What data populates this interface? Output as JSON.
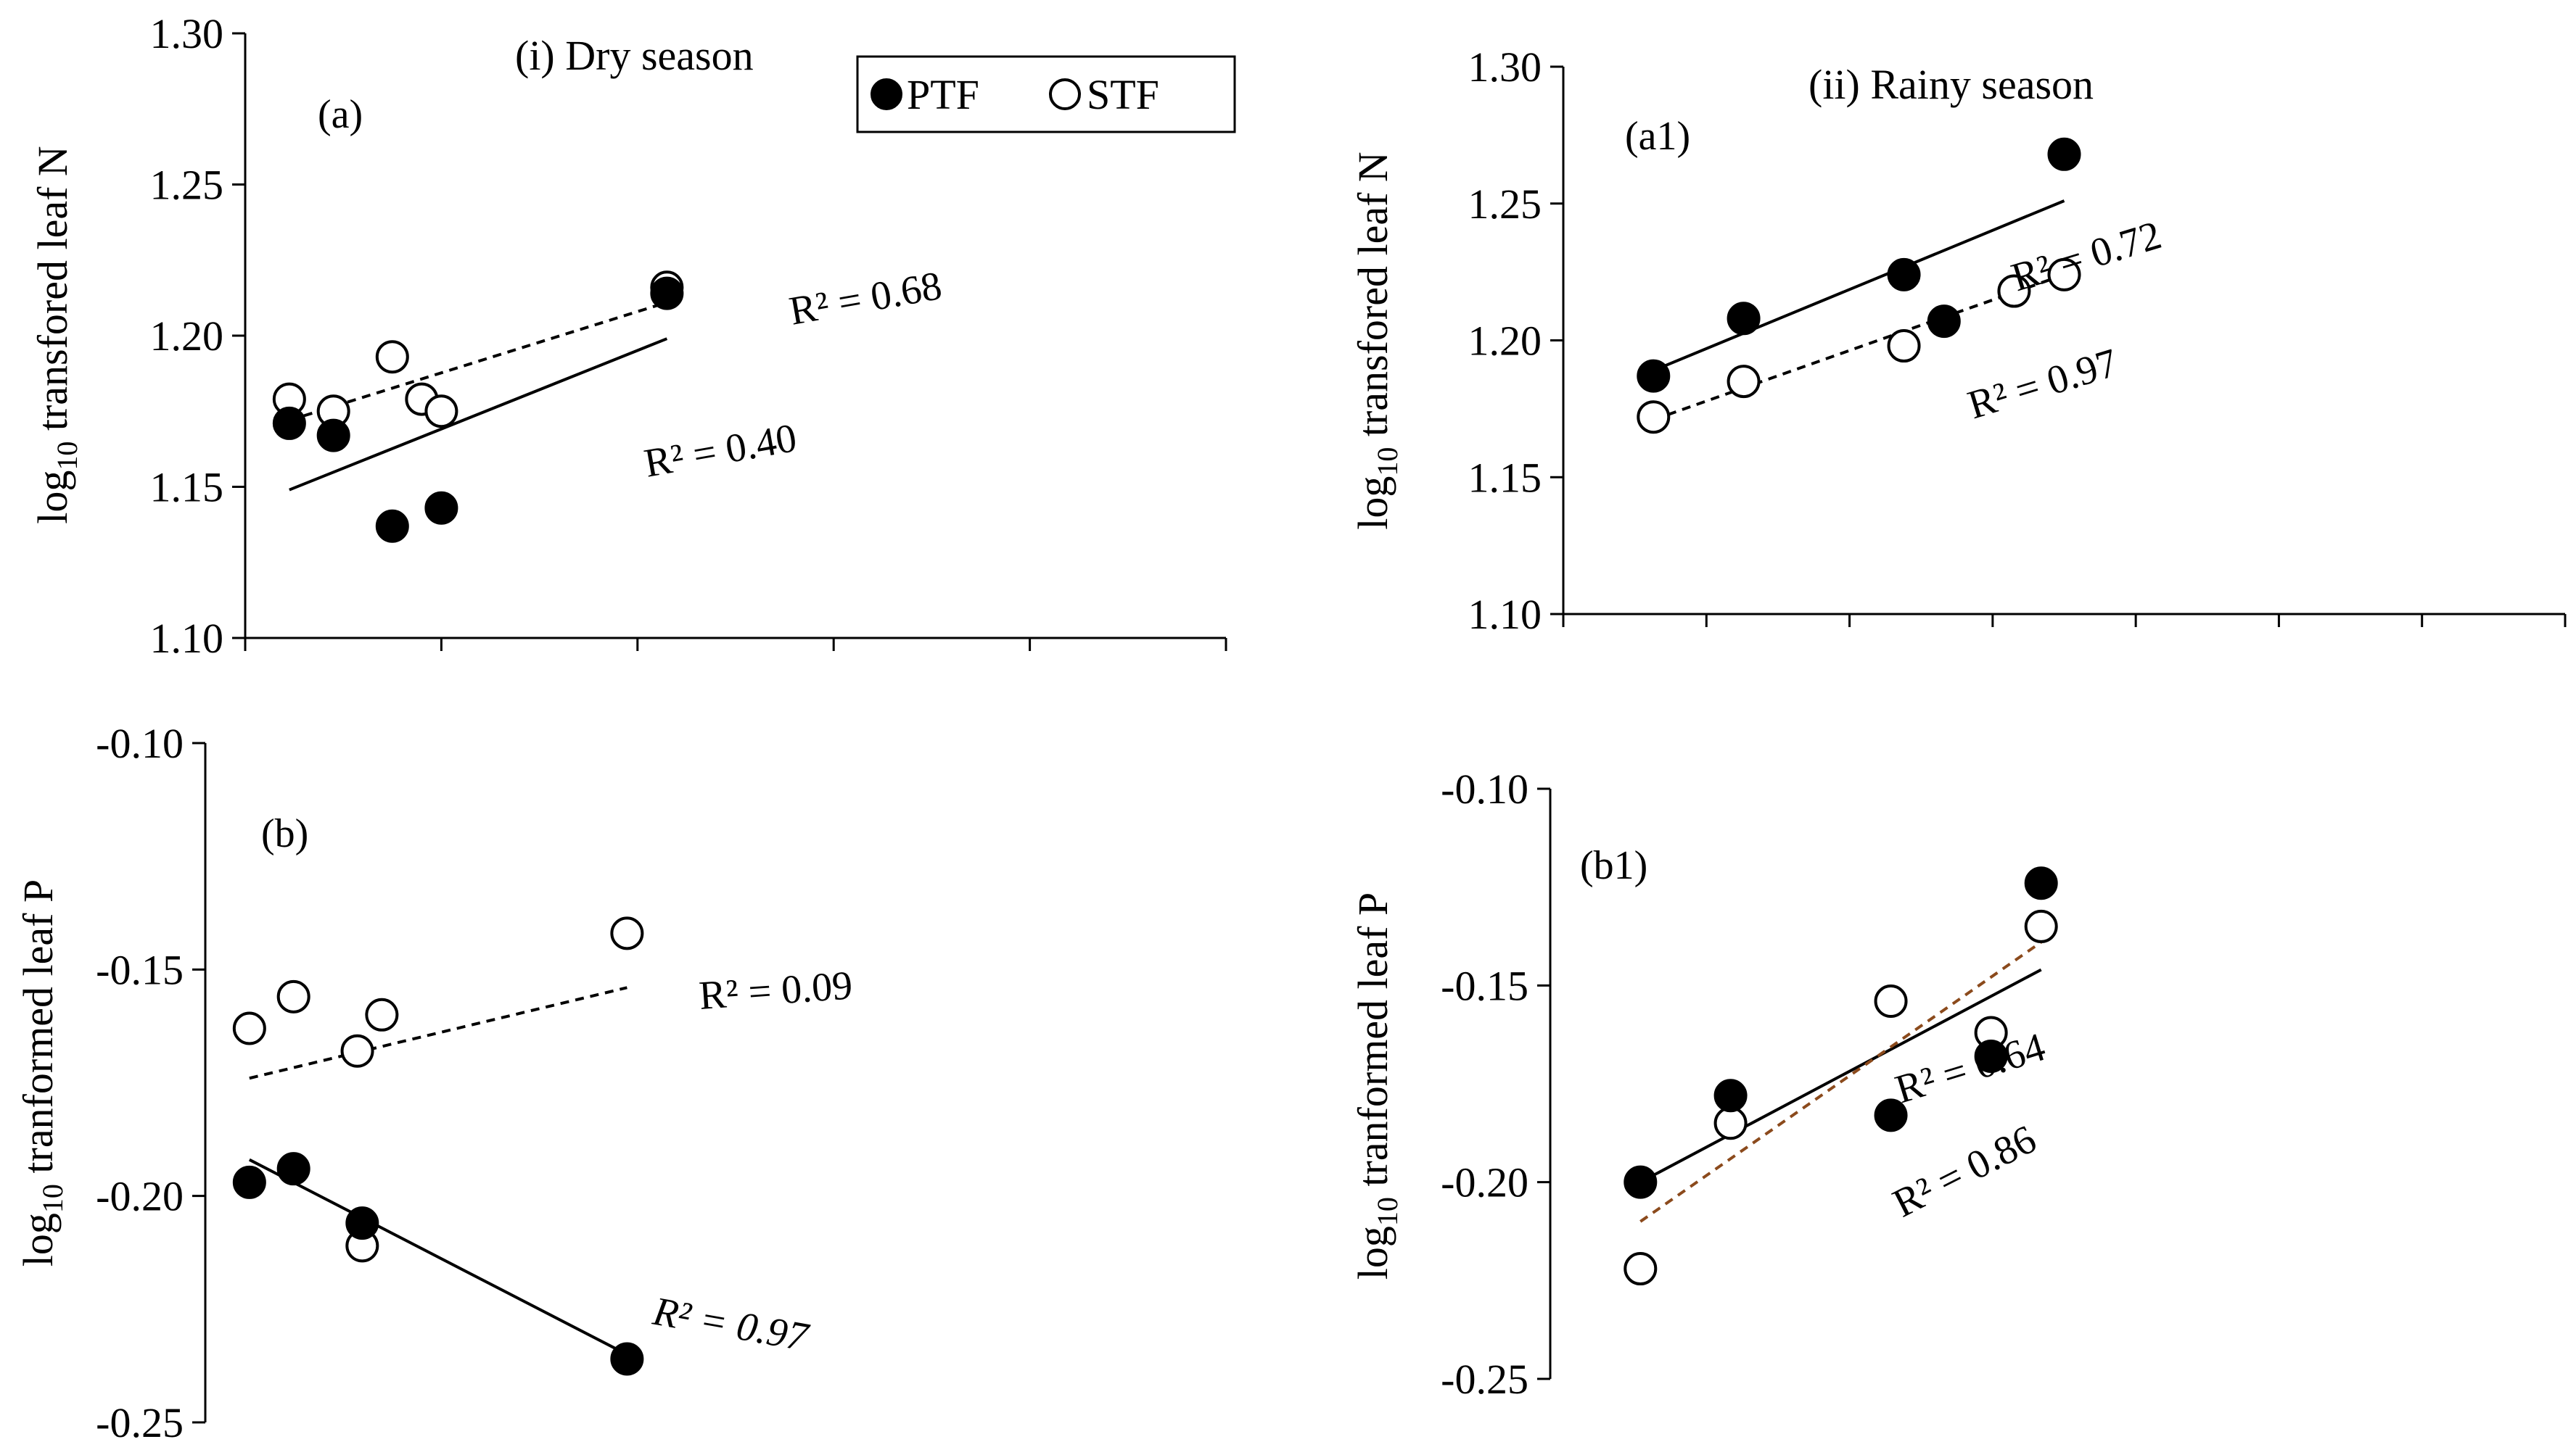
{
  "legend": {
    "items": [
      {
        "label": "PTF",
        "marker": "filled-circle"
      },
      {
        "label": "STF",
        "marker": "open-circle"
      }
    ]
  },
  "colors": {
    "ink": "#000000",
    "background": "#ffffff",
    "rainy_p_stf_fit": "#8b4a1c"
  },
  "chart_data": [
    {
      "id": "a",
      "type": "scatter",
      "panel_label": "(a)",
      "title": "(i) Dry season",
      "ylabel_base": "log",
      "ylabel_sub": "10",
      "ylabel_rest": " transfored leaf N",
      "ylim": [
        1.1,
        1.3
      ],
      "yticks": [
        1.1,
        1.15,
        1.2,
        1.25,
        1.3
      ],
      "ytick_labels": [
        "1.10",
        "1.15",
        "1.20",
        "1.25",
        "1.30"
      ],
      "xlim": [
        0,
        10
      ],
      "xticks": [
        0,
        2,
        4,
        6,
        8,
        10
      ],
      "series": [
        {
          "name": "PTF",
          "filled": true,
          "x": [
            0.45,
            0.9,
            1.5,
            2.0,
            4.3
          ],
          "y": [
            1.171,
            1.167,
            1.137,
            1.143,
            1.214
          ],
          "fit": {
            "x": [
              0.45,
              4.3
            ],
            "y": [
              1.149,
              1.199
            ],
            "dash": false,
            "r2": "R² = 0.40"
          }
        },
        {
          "name": "STF",
          "filled": false,
          "x": [
            0.45,
            0.9,
            1.5,
            1.8,
            2.0,
            4.3
          ],
          "y": [
            1.179,
            1.175,
            1.193,
            1.179,
            1.175,
            1.216
          ],
          "fit": {
            "x": [
              0.45,
              4.3
            ],
            "y": [
              1.172,
              1.211
            ],
            "dash": true,
            "r2": "R² = 0.68"
          }
        }
      ]
    },
    {
      "id": "a1",
      "type": "scatter",
      "panel_label": "(a1)",
      "title": "(ii) Rainy season",
      "ylabel_base": "log",
      "ylabel_sub": "10",
      "ylabel_rest": " transfored leaf N",
      "ylim": [
        1.1,
        1.3
      ],
      "yticks": [
        1.1,
        1.15,
        1.2,
        1.25,
        1.3
      ],
      "ytick_labels": [
        "1.10",
        "1.15",
        "1.20",
        "1.25",
        "1.30"
      ],
      "xlim": [
        0,
        10
      ],
      "xticks": [
        0,
        1,
        2,
        3,
        4,
        5,
        6,
        7
      ],
      "series": [
        {
          "name": "PTF",
          "filled": true,
          "x": [
            0.9,
            1.8,
            3.4,
            3.8,
            5.0
          ],
          "y": [
            1.187,
            1.208,
            1.224,
            1.207,
            1.268
          ],
          "fit": {
            "x": [
              0.9,
              5.0
            ],
            "y": [
              1.189,
              1.251
            ],
            "dash": false,
            "r2": "R² = 0.72"
          }
        },
        {
          "name": "STF",
          "filled": false,
          "x": [
            0.9,
            1.8,
            3.4,
            4.5,
            5.0
          ],
          "y": [
            1.172,
            1.185,
            1.198,
            1.218,
            1.224
          ],
          "fit": {
            "x": [
              0.9,
              5.0
            ],
            "y": [
              1.171,
              1.224
            ],
            "dash": true,
            "r2": "R² = 0.97"
          }
        }
      ]
    },
    {
      "id": "b",
      "type": "scatter",
      "panel_label": "(b)",
      "title": "",
      "ylabel_base": "log",
      "ylabel_sub": "10",
      "ylabel_rest": " tranformed leaf P",
      "ylim": [
        -0.25,
        -0.1
      ],
      "yticks": [
        -0.25,
        -0.2,
        -0.15,
        -0.1
      ],
      "ytick_labels": [
        "-0.25",
        "-0.20",
        "-0.15",
        "-0.10"
      ],
      "xlim": [
        0,
        10
      ],
      "xticks": [],
      "series": [
        {
          "name": "PTF",
          "filled": true,
          "x": [
            0.45,
            0.9,
            1.6,
            4.3
          ],
          "y": [
            -0.197,
            -0.194,
            -0.206,
            -0.236
          ],
          "fit": {
            "x": [
              0.45,
              4.3
            ],
            "y": [
              -0.192,
              -0.235
            ],
            "dash": false,
            "r2": "R² = 0.97"
          }
        },
        {
          "name": "STF",
          "filled": false,
          "x": [
            0.45,
            0.9,
            1.55,
            1.8,
            1.6,
            4.3
          ],
          "y": [
            -0.163,
            -0.156,
            -0.168,
            -0.16,
            -0.211,
            -0.142
          ],
          "fit": {
            "x": [
              0.45,
              4.3
            ],
            "y": [
              -0.174,
              -0.154
            ],
            "dash": true,
            "r2": "R² = 0.09"
          }
        }
      ]
    },
    {
      "id": "b1",
      "type": "scatter",
      "panel_label": "(b1)",
      "title": "",
      "ylabel_base": "log",
      "ylabel_sub": "10",
      "ylabel_rest": " tranformed leaf P",
      "ylim": [
        -0.25,
        -0.1
      ],
      "yticks": [
        -0.25,
        -0.2,
        -0.15,
        -0.1
      ],
      "ytick_labels": [
        "-0.25",
        "-0.20",
        "-0.15",
        "-0.10"
      ],
      "xlim": [
        0,
        10
      ],
      "xticks": [],
      "series": [
        {
          "name": "PTF",
          "filled": true,
          "x": [
            0.9,
            1.8,
            3.4,
            4.4,
            4.9
          ],
          "y": [
            -0.2,
            -0.178,
            -0.183,
            -0.168,
            -0.124
          ],
          "fit": {
            "x": [
              0.9,
              4.9
            ],
            "y": [
              -0.2,
              -0.146
            ],
            "dash": false,
            "r2": "R² = 0.64"
          }
        },
        {
          "name": "STF",
          "filled": false,
          "x": [
            0.9,
            1.8,
            3.4,
            4.4,
            4.9
          ],
          "y": [
            -0.222,
            -0.185,
            -0.154,
            -0.162,
            -0.135
          ],
          "fit": {
            "x": [
              0.9,
              4.9
            ],
            "y": [
              -0.21,
              -0.139
            ],
            "dash": true,
            "r2": "R² = 0.86"
          }
        }
      ]
    }
  ]
}
